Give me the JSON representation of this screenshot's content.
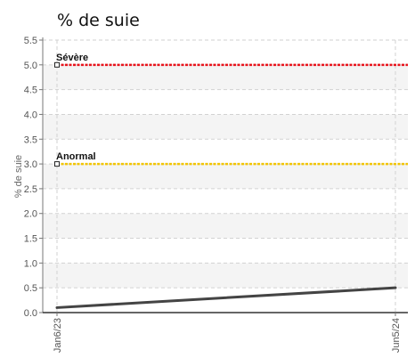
{
  "chart_data": {
    "type": "line",
    "title": "% de suie",
    "xlabel": "",
    "ylabel": "% de suie",
    "x_ticks": [
      "Jan6/23",
      "Jun5/24"
    ],
    "ylim": [
      0,
      5.5
    ],
    "y_ticks": [
      "0.0",
      "0.5",
      "1.0",
      "1.5",
      "2.0",
      "2.5",
      "3.0",
      "3.5",
      "4.0",
      "4.5",
      "5.0",
      "5.5"
    ],
    "grid": true,
    "series": [
      {
        "x": [
          "Jan6/23",
          "Jun5/24"
        ],
        "values": [
          0.1,
          0.5
        ],
        "color": "#444444"
      }
    ],
    "thresholds": [
      {
        "label": "Sévère",
        "value": 5.0,
        "color": "#e8141c"
      },
      {
        "label": "Anormal",
        "value": 3.0,
        "color": "#f2c500"
      }
    ]
  }
}
